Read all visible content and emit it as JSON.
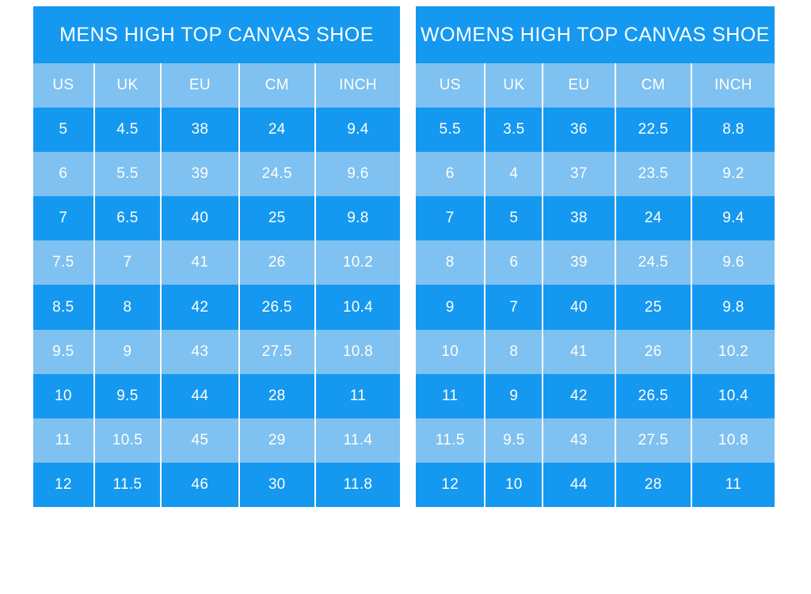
{
  "colors": {
    "row_dark": "#1598EF",
    "row_light": "#7FC1F0",
    "text": "#FFFFFF",
    "background": "#FFFFFF"
  },
  "chart_data": [
    {
      "type": "table",
      "title": "MENS HIGH TOP CANVAS SHOE",
      "columns": [
        "US",
        "UK",
        "EU",
        "CM",
        "INCH"
      ],
      "rows": [
        [
          "5",
          "4.5",
          "38",
          "24",
          "9.4"
        ],
        [
          "6",
          "5.5",
          "39",
          "24.5",
          "9.6"
        ],
        [
          "7",
          "6.5",
          "40",
          "25",
          "9.8"
        ],
        [
          "7.5",
          "7",
          "41",
          "26",
          "10.2"
        ],
        [
          "8.5",
          "8",
          "42",
          "26.5",
          "10.4"
        ],
        [
          "9.5",
          "9",
          "43",
          "27.5",
          "10.8"
        ],
        [
          "10",
          "9.5",
          "44",
          "28",
          "11"
        ],
        [
          "11",
          "10.5",
          "45",
          "29",
          "11.4"
        ],
        [
          "12",
          "11.5",
          "46",
          "30",
          "11.8"
        ]
      ]
    },
    {
      "type": "table",
      "title": "WOMENS HIGH TOP CANVAS SHOE",
      "columns": [
        "US",
        "UK",
        "EU",
        "CM",
        "INCH"
      ],
      "rows": [
        [
          "5.5",
          "3.5",
          "36",
          "22.5",
          "8.8"
        ],
        [
          "6",
          "4",
          "37",
          "23.5",
          "9.2"
        ],
        [
          "7",
          "5",
          "38",
          "24",
          "9.4"
        ],
        [
          "8",
          "6",
          "39",
          "24.5",
          "9.6"
        ],
        [
          "9",
          "7",
          "40",
          "25",
          "9.8"
        ],
        [
          "10",
          "8",
          "41",
          "26",
          "10.2"
        ],
        [
          "11",
          "9",
          "42",
          "26.5",
          "10.4"
        ],
        [
          "11.5",
          "9.5",
          "43",
          "27.5",
          "10.8"
        ],
        [
          "12",
          "10",
          "44",
          "28",
          "11"
        ]
      ]
    }
  ]
}
